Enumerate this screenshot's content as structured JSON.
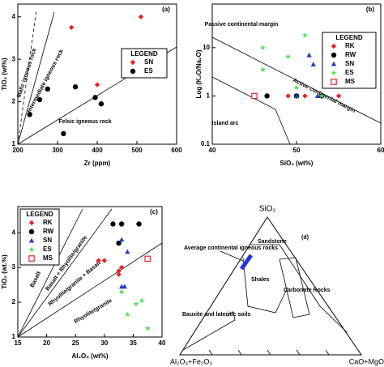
{
  "chart_data": [
    {
      "type": "scatter",
      "panel": "(a)",
      "xlabel": "Zr (ppm)",
      "ylabel": "TiO₂ (wt%)",
      "xlim": [
        200,
        600
      ],
      "ylim": [
        1,
        4.3
      ],
      "xticks": [
        200,
        300,
        400,
        500,
        600
      ],
      "yticks": [
        1,
        2,
        3,
        4
      ],
      "log": false,
      "legend_title": "LEGEND",
      "series": [
        {
          "name": "SN",
          "color": "#e8232a",
          "marker": "diamond",
          "x": [
            335,
            400,
            510
          ],
          "values": [
            3.75,
            2.4,
            4
          ]
        },
        {
          "name": "ES",
          "color": "#000000",
          "marker": "circle",
          "x": [
            230,
            255,
            275,
            345,
            395,
            410,
            315
          ],
          "values": [
            1.7,
            2.05,
            2.3,
            2.35,
            2.1,
            1.95,
            1.25
          ]
        }
      ],
      "annotations": [
        "Mafic igneous rock",
        "Intermediate igneous rock",
        "Felsic igneous rock"
      ]
    },
    {
      "type": "scatter",
      "panel": "(b)",
      "xlabel": "SiO₂ (wt%)",
      "ylabel": "Log (K₂O/Na₂O)",
      "xlim": [
        40,
        60
      ],
      "ylim": [
        0.1,
        80
      ],
      "xticks": [
        40,
        50,
        60
      ],
      "yticks": [
        0.1,
        1,
        10
      ],
      "log": true,
      "legend_title": "LEGEND",
      "series": [
        {
          "name": "RK",
          "color": "#e8232a",
          "marker": "diamond",
          "x": [
            49,
            51,
            55
          ],
          "values": [
            1,
            1,
            1
          ]
        },
        {
          "name": "RW",
          "color": "#000000",
          "marker": "circle",
          "x": [
            46.5,
            50,
            53
          ],
          "values": [
            1,
            1,
            1
          ]
        },
        {
          "name": "SN",
          "color": "#1f3fbf",
          "marker": "triangle",
          "x": [
            51.5,
            52,
            50,
            52.5
          ],
          "values": [
            7,
            4.5,
            1,
            1
          ]
        },
        {
          "name": "ES",
          "color": "#52e052",
          "marker": "star",
          "x": [
            46,
            46,
            49,
            51,
            53,
            50
          ],
          "values": [
            3.5,
            10,
            6.5,
            18,
            1,
            1.5
          ]
        },
        {
          "name": "MS",
          "color": "#e8232a",
          "marker": "square-open",
          "x": [
            45
          ],
          "values": [
            1
          ]
        }
      ],
      "annotations": [
        "Passive continental margin",
        "Active continental margin",
        "Island arc"
      ]
    },
    {
      "type": "scatter",
      "panel": "(c)",
      "xlabel": "Al₂O₃ (wt%)",
      "ylabel": "TiO₂ (wt.%)",
      "xlim": [
        15,
        40
      ],
      "ylim": [
        1,
        4.75
      ],
      "xticks": [
        15,
        20,
        25,
        30,
        35,
        40
      ],
      "yticks": [
        1,
        2,
        3,
        4
      ],
      "log": false,
      "legend_title": "LEGEND",
      "series": [
        {
          "name": "RK",
          "color": "#e8232a",
          "marker": "diamond",
          "x": [
            29,
            30,
            32.5,
            33,
            32.5
          ],
          "values": [
            3.2,
            3.2,
            2.9,
            3,
            2.8
          ]
        },
        {
          "name": "RW",
          "color": "#000000",
          "marker": "circle",
          "x": [
            31.5,
            33,
            36,
            32.5
          ],
          "values": [
            4.25,
            4.25,
            4.25,
            3.7
          ]
        },
        {
          "name": "SN",
          "color": "#1f3fbf",
          "marker": "triangle",
          "x": [
            33,
            34,
            33,
            33.5
          ],
          "values": [
            3.8,
            3.45,
            2.45,
            2.45
          ]
        },
        {
          "name": "ES",
          "color": "#52e052",
          "marker": "star",
          "x": [
            33,
            34,
            35.5,
            36.5,
            37.5
          ],
          "values": [
            2.3,
            1.65,
            1.95,
            2.05,
            1.25
          ]
        },
        {
          "name": "MS",
          "color": "#e8232a",
          "marker": "square-open",
          "x": [
            37.5
          ],
          "values": [
            3.25
          ]
        }
      ],
      "annotations": [
        "Basalt",
        "Basalt + Rhyolite/granite",
        "Rhyolite/granite + Basalt",
        "Rhyolite/granite"
      ]
    }
  ],
  "diagram": {
    "panel": "(d)",
    "apex": "SiO₂",
    "left": "Al₂O₃+Fe₂O₃",
    "right": "CaO+MgO",
    "labels": [
      "Average continental igneous rocks",
      "Sandstone",
      "Shales",
      "Carbonate Rocks",
      "Bauxite and lateritic soils"
    ]
  }
}
